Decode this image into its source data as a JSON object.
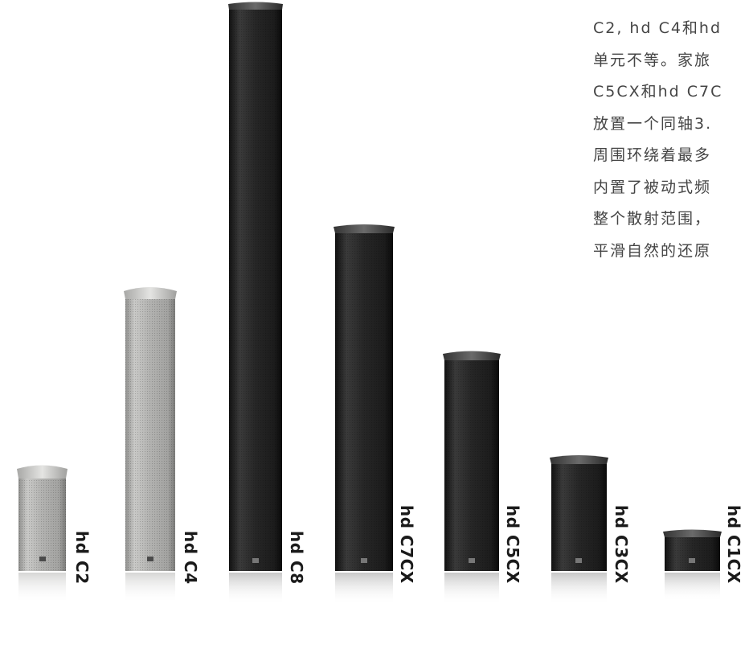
{
  "description_text": {
    "lines": [
      "C2, hd C4和hd",
      "单元不等。家旅",
      "C5CX和hd C7C",
      "放置一个同轴3.",
      "周围环绕着最多",
      "内置了被动式频",
      "整个散射范围，",
      "平滑自然的还原"
    ]
  },
  "speakers": [
    {
      "model": "hd C2",
      "finish": "grey"
    },
    {
      "model": "hd C4",
      "finish": "grey"
    },
    {
      "model": "hd C8",
      "finish": "black"
    },
    {
      "model": "hd C7CX",
      "finish": "black"
    },
    {
      "model": "hd C5CX",
      "finish": "black"
    },
    {
      "model": "hd C3CX",
      "finish": "black"
    },
    {
      "model": "hd C1CX",
      "finish": "black"
    }
  ],
  "colors": {
    "grey_body": "#b4b4b2",
    "black_body": "#232323",
    "text": "#454545",
    "label": "#1a1a1a"
  }
}
